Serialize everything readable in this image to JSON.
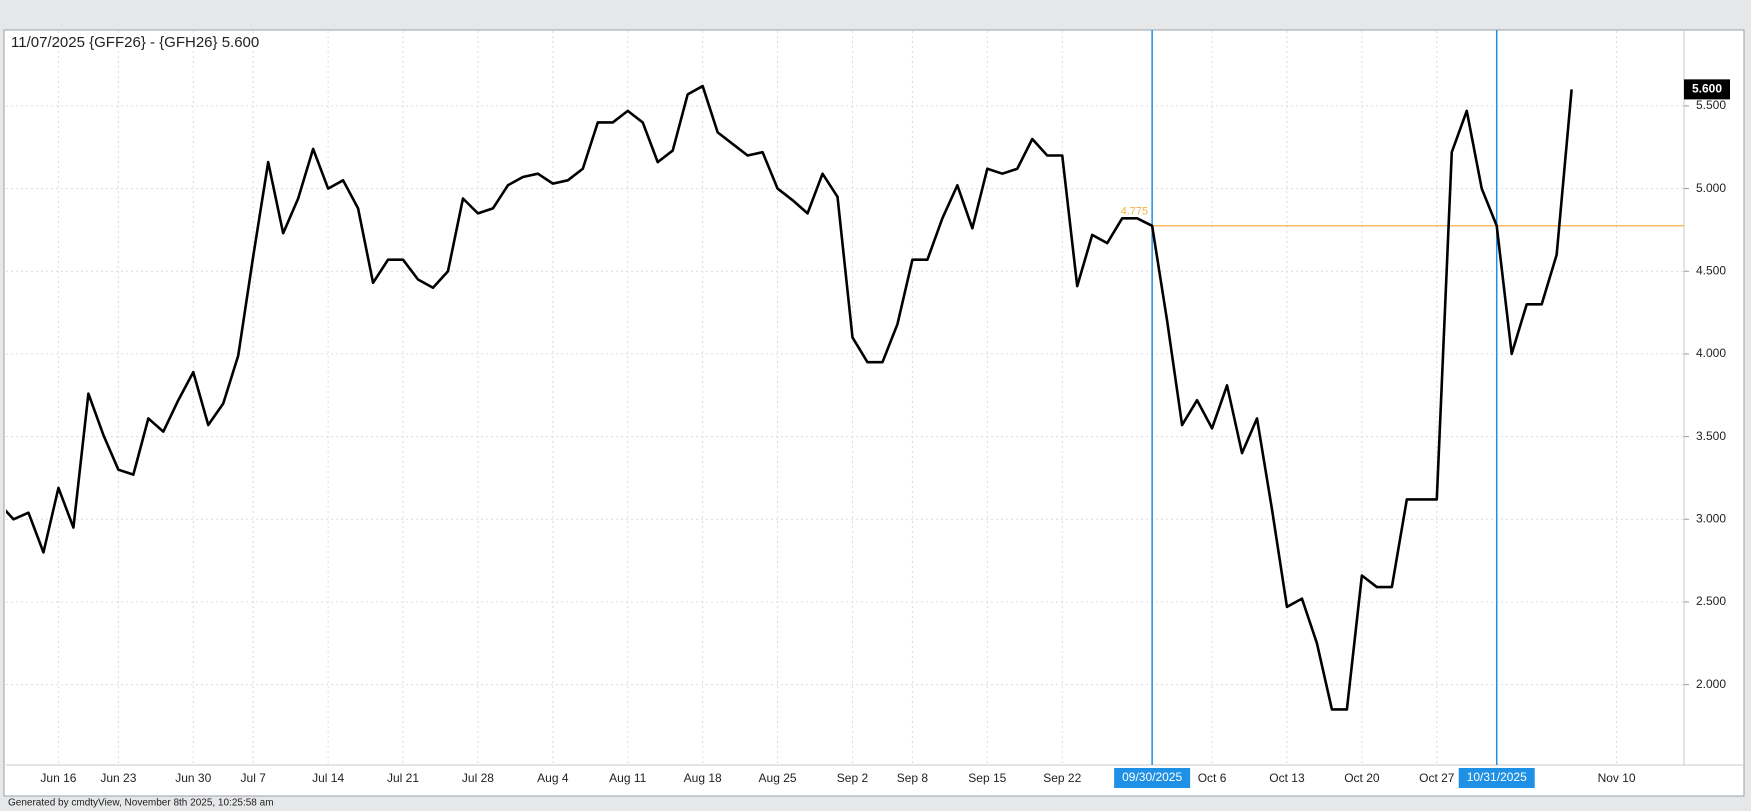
{
  "chart_data": {
    "type": "line",
    "title": "11/07/2025 {GFF26} - {GFH26} 5.600",
    "footer": "Generated by cmdtyView, November 8th 2025, 10:25:58 am",
    "categories": [
      null,
      null,
      null,
      null,
      "Jun 16",
      null,
      null,
      null,
      "Jun 23",
      null,
      null,
      null,
      null,
      "Jun 30",
      null,
      null,
      null,
      "Jul 7",
      null,
      null,
      null,
      null,
      "Jul 14",
      null,
      null,
      null,
      null,
      "Jul 21",
      null,
      null,
      null,
      null,
      "Jul 28",
      null,
      null,
      null,
      null,
      "Aug 4",
      null,
      null,
      null,
      null,
      "Aug 11",
      null,
      null,
      null,
      null,
      "Aug 18",
      null,
      null,
      null,
      null,
      "Aug 25",
      null,
      null,
      null,
      null,
      "Sep 2",
      null,
      null,
      null,
      "Sep 8",
      null,
      null,
      null,
      null,
      "Sep 15",
      null,
      null,
      null,
      null,
      "Sep 22",
      null,
      null,
      null,
      null,
      null,
      "09/30/2025",
      null,
      null,
      null,
      "Oct 6",
      null,
      null,
      null,
      null,
      "Oct 13",
      null,
      null,
      null,
      null,
      "Oct 20",
      null,
      null,
      null,
      null,
      "Oct 27",
      null,
      null,
      null,
      "10/31/2025",
      null,
      null,
      null,
      null,
      null,
      null,
      null,
      "Nov 10",
      null,
      null,
      null,
      null
    ],
    "series": [
      {
        "name": "GFF26 - GFH26",
        "color": "#000000",
        "values": [
          3.1,
          3.0,
          3.04,
          2.8,
          3.19,
          2.95,
          3.76,
          3.51,
          3.3,
          3.27,
          3.61,
          3.53,
          3.72,
          3.89,
          3.57,
          3.7,
          3.99,
          4.59,
          5.16,
          4.73,
          4.94,
          5.24,
          5.0,
          5.05,
          4.88,
          4.43,
          4.57,
          4.57,
          4.45,
          4.4,
          4.5,
          4.94,
          4.85,
          4.88,
          5.02,
          5.07,
          5.09,
          5.03,
          5.05,
          5.12,
          5.4,
          5.4,
          5.47,
          5.4,
          5.16,
          5.23,
          5.57,
          5.62,
          5.34,
          5.27,
          5.2,
          5.22,
          5.0,
          4.93,
          4.85,
          5.09,
          4.95,
          4.1,
          3.95,
          3.95,
          4.18,
          4.57,
          4.57,
          4.82,
          5.02,
          4.76,
          5.12,
          5.09,
          5.12,
          5.3,
          5.2,
          5.2,
          4.41,
          4.72,
          4.67,
          4.82,
          4.82,
          4.775,
          4.2,
          3.57,
          3.72,
          3.55,
          3.81,
          3.4,
          3.61,
          3.06,
          2.47,
          2.52,
          2.25,
          1.85,
          1.85,
          2.66,
          2.59,
          2.59,
          3.12,
          3.12,
          3.12,
          5.22,
          5.47,
          5.0,
          4.775,
          4.0,
          4.3,
          4.3,
          4.6,
          5.6,
          null,
          null,
          null,
          null,
          null,
          null,
          null
        ]
      }
    ],
    "last_value_label": "5.600",
    "vertical_lines": {
      "color": "#1e90e6",
      "at": [
        "09/30/2025",
        "10/31/2025"
      ]
    },
    "horizontal_line": {
      "value": 4.775,
      "color": "#f5b041"
    },
    "ylim": [
      1.514,
      5.953
    ],
    "yticks": [
      {
        "value": 2,
        "label": "2.000"
      },
      {
        "value": 2.5,
        "label": "2.500"
      },
      {
        "value": 3,
        "label": "3.000"
      },
      {
        "value": 3.5,
        "label": "3.500"
      },
      {
        "value": 4,
        "label": "4.000"
      },
      {
        "value": 4.5,
        "label": "4.500"
      },
      {
        "value": 5,
        "label": "5.000"
      },
      {
        "value": 5.5,
        "label": "5.500"
      }
    ],
    "grid": true
  }
}
